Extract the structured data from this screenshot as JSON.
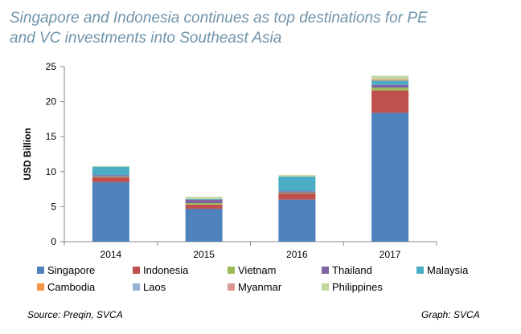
{
  "title_lines": [
    "Singapore and Indonesia continues as top destinations for PE",
    "and VC investments into Southeast Asia"
  ],
  "source": "Source: Preqin, SVCA",
  "credit": "Graph: SVCA",
  "chart_data": {
    "type": "bar",
    "stacked": true,
    "categories": [
      "2014",
      "2015",
      "2016",
      "2017"
    ],
    "ylabel": "USD Billion",
    "ylim": [
      0,
      25
    ],
    "yticks": [
      0,
      5,
      10,
      15,
      20,
      25
    ],
    "grid": false,
    "legend_position": "bottom",
    "series": [
      {
        "name": "Singapore",
        "color": "#4f81bd",
        "values": [
          8.5,
          4.7,
          6.0,
          18.4
        ]
      },
      {
        "name": "Indonesia",
        "color": "#c0504d",
        "values": [
          0.7,
          0.6,
          0.9,
          3.2
        ]
      },
      {
        "name": "Vietnam",
        "color": "#9bbb59",
        "values": [
          0.1,
          0.2,
          0.1,
          0.4
        ]
      },
      {
        "name": "Thailand",
        "color": "#8064a2",
        "values": [
          0.2,
          0.5,
          0.2,
          0.4
        ]
      },
      {
        "name": "Malaysia",
        "color": "#4bacc6",
        "values": [
          1.2,
          0.1,
          2.1,
          0.6
        ]
      },
      {
        "name": "Cambodia",
        "color": "#f79646",
        "values": [
          0.0,
          0.0,
          0.0,
          0.1
        ]
      },
      {
        "name": "Laos",
        "color": "#95b3d7",
        "values": [
          0.0,
          0.0,
          0.0,
          0.0
        ]
      },
      {
        "name": "Myanmar",
        "color": "#d99694",
        "values": [
          0.0,
          0.0,
          0.0,
          0.1
        ]
      },
      {
        "name": "Philippines",
        "color": "#c3d69b",
        "values": [
          0.1,
          0.3,
          0.2,
          0.5
        ]
      }
    ]
  }
}
